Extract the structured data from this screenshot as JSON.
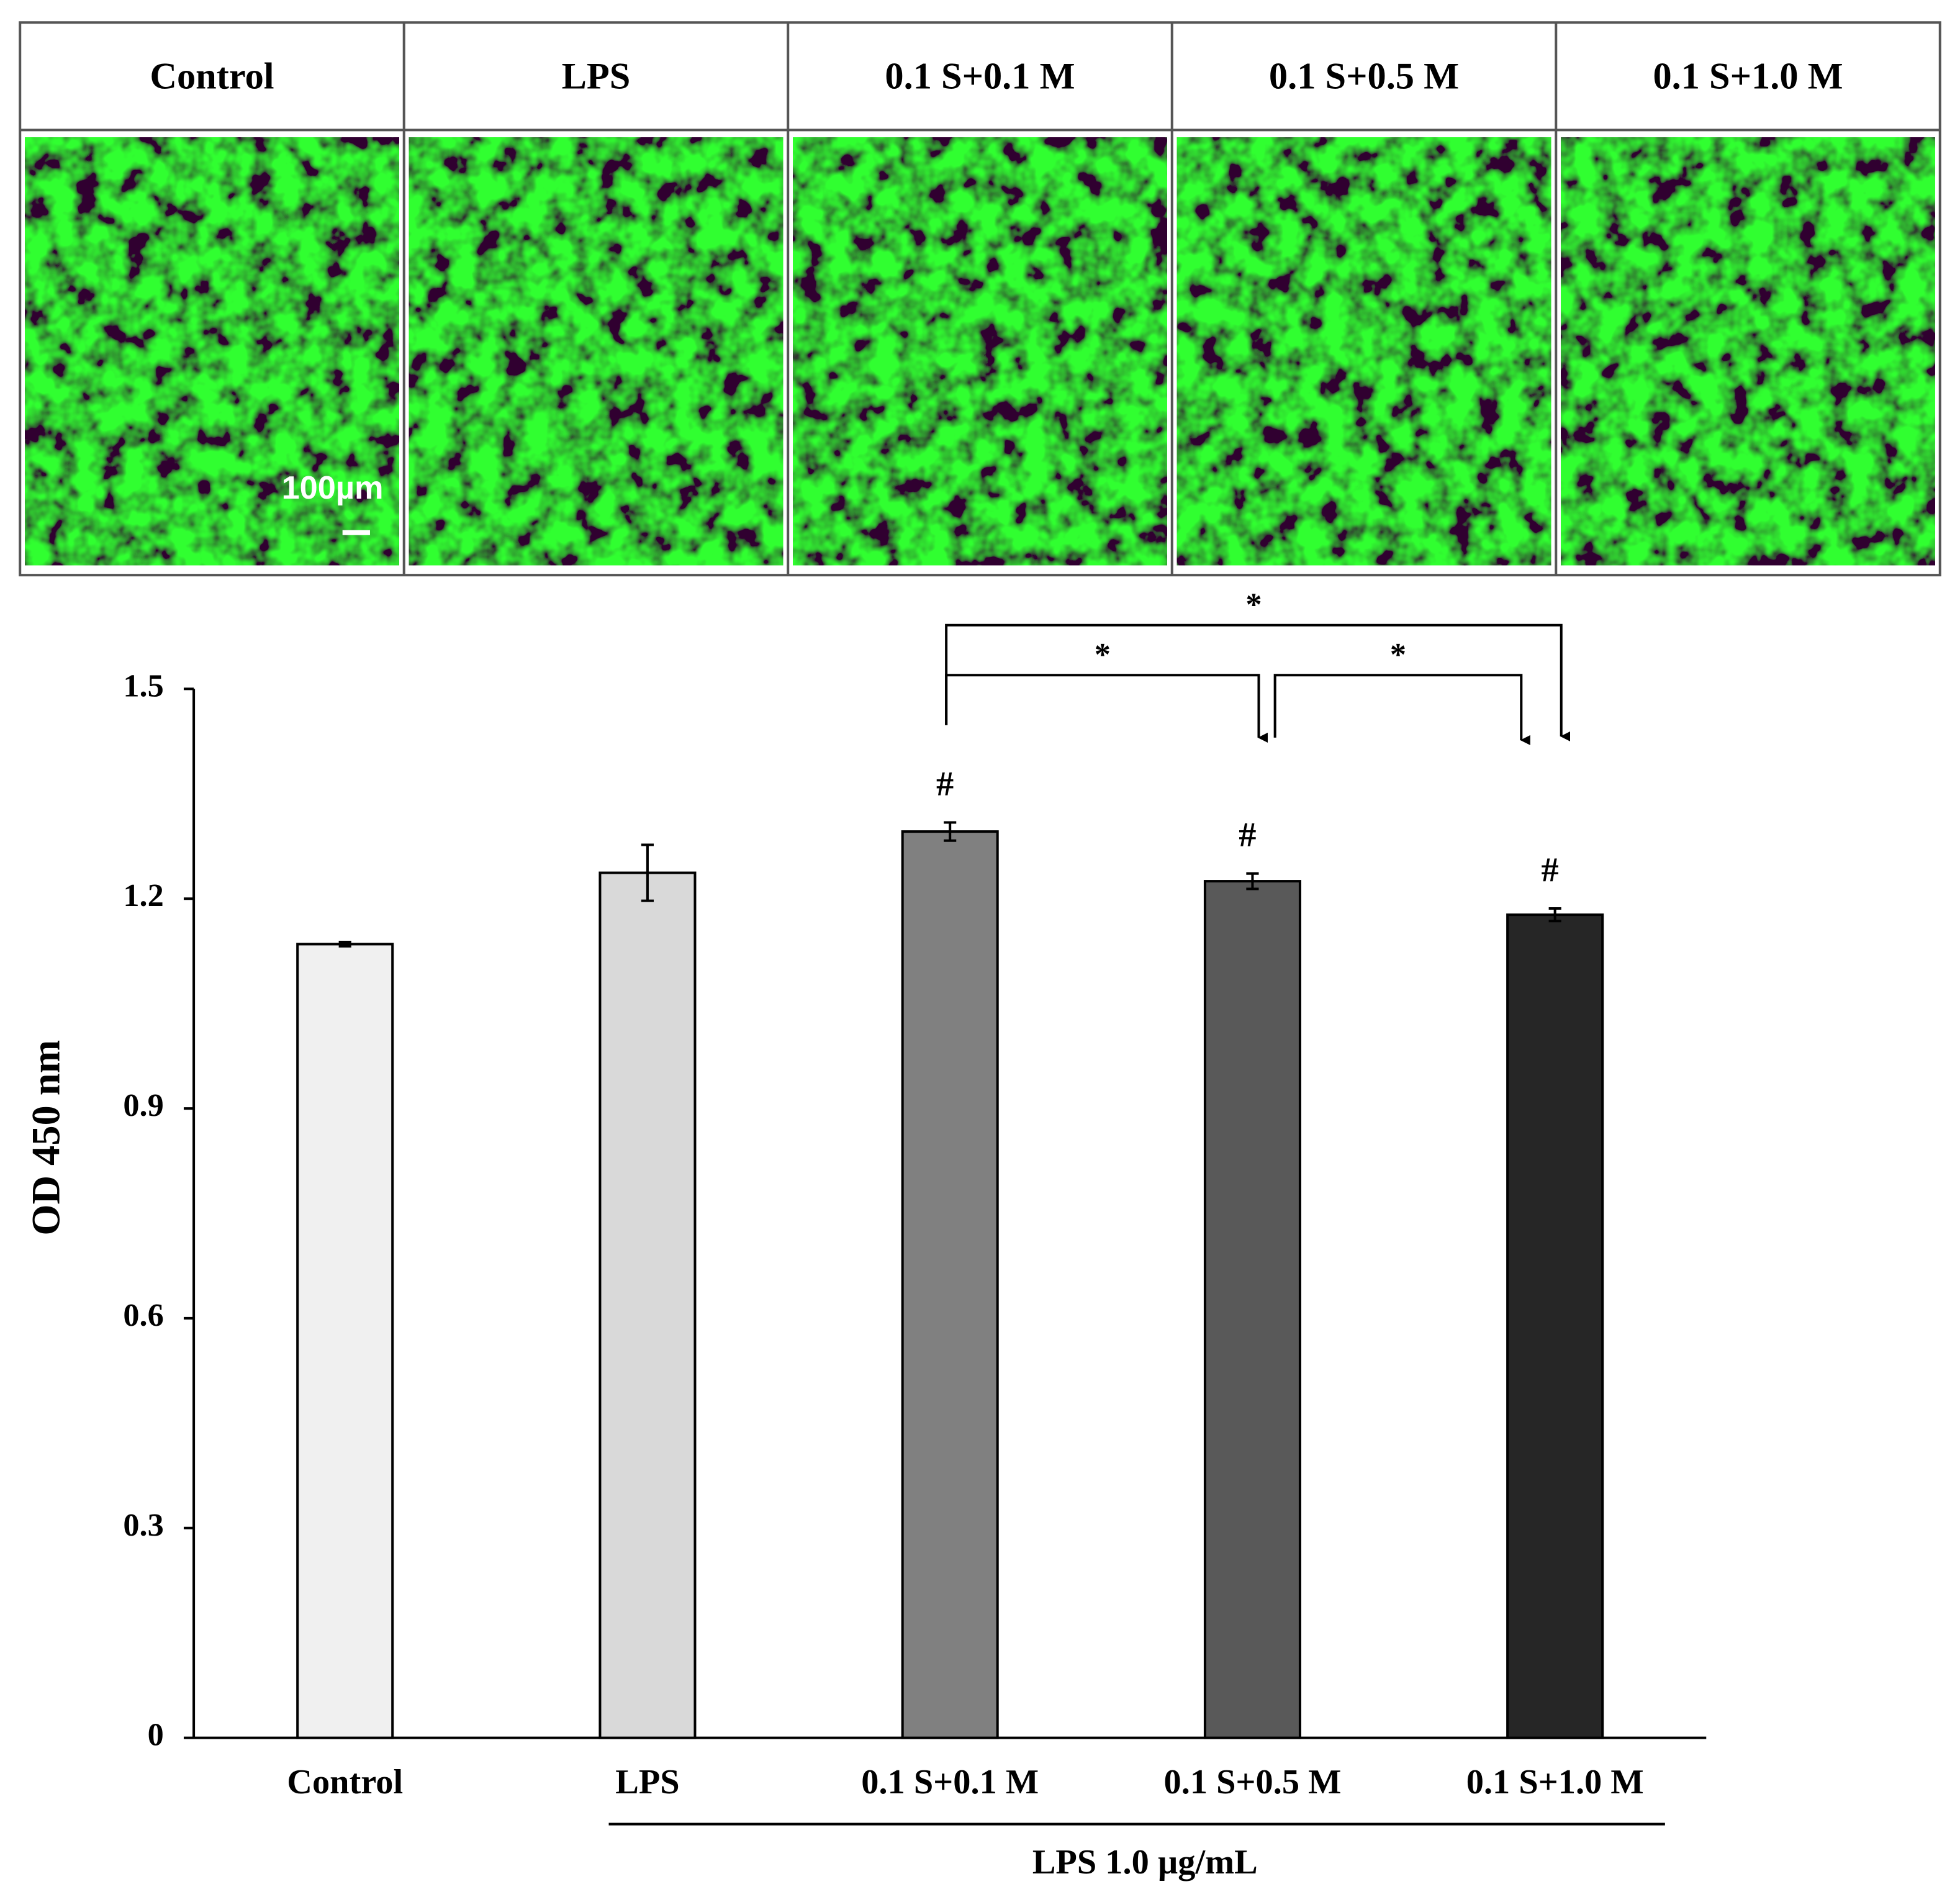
{
  "image_panel": {
    "headers": [
      "Control",
      "LPS",
      "0.1 S+0.1 M",
      "0.1 S+0.5 M",
      "0.1 S+1.0 M"
    ],
    "scale_bar": "100µm"
  },
  "chart_data": {
    "type": "bar",
    "categories": [
      "Control",
      "LPS",
      "0.1 S+0.1 M",
      "0.1 S+0.5 M",
      "0.1 S+1.0 M"
    ],
    "values": [
      1.135,
      1.237,
      1.296,
      1.225,
      1.177
    ],
    "errors": [
      0.003,
      0.04,
      0.013,
      0.011,
      0.009
    ],
    "colors": [
      "#f0f0f0",
      "#d9d9d9",
      "#808080",
      "#595959",
      "#262626"
    ],
    "y_label": "OD 450 nm",
    "ylim": [
      0,
      1.5
    ],
    "yticks": [
      0,
      0.3,
      0.6,
      0.9,
      1.2,
      1.5
    ],
    "group_label": "LPS 1.0 µg/mL",
    "markers": [
      {
        "category": "0.1 S+0.1 M",
        "label": "#"
      },
      {
        "category": "0.1 S+0.5 M",
        "label": "#"
      },
      {
        "category": "0.1 S+1.0 M",
        "label": "#"
      }
    ],
    "comparisons": [
      {
        "from": "0.1 S+0.1 M",
        "to": "0.1 S+1.0 M",
        "label": "*"
      },
      {
        "from": "0.1 S+0.1 M",
        "to": "0.1 S+0.5 M",
        "label": "*"
      },
      {
        "from": "0.1 S+0.5 M",
        "to": "0.1 S+1.0 M",
        "label": "*"
      }
    ]
  }
}
